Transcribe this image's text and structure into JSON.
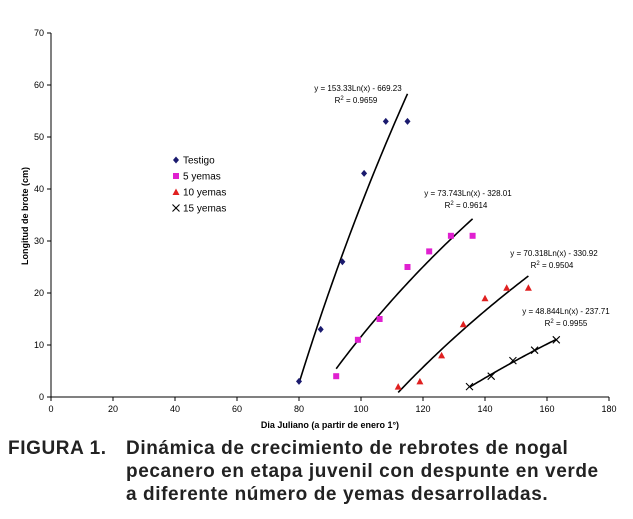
{
  "chart_data": {
    "type": "scatter",
    "title": "",
    "xlabel": "Dia Juliano (a partir de enero 1°)",
    "ylabel": "Longitud de brote (cm)",
    "xlim": [
      0,
      180
    ],
    "ylim": [
      0,
      70
    ],
    "xticks": [
      "0",
      "20",
      "40",
      "60",
      "80",
      "100",
      "120",
      "140",
      "160",
      "180"
    ],
    "yticks": [
      "0",
      "10",
      "20",
      "30",
      "40",
      "50",
      "60",
      "70"
    ],
    "legend_position": "center-left",
    "series": [
      {
        "name": "Testigo",
        "marker": "diamond",
        "color": "#1a1a6e",
        "x": [
          80,
          87,
          94,
          101,
          108,
          115
        ],
        "y": [
          3,
          13,
          26,
          43,
          53,
          53
        ],
        "trend": {
          "a": 153.33,
          "b": 669.23,
          "x_range": [
            80,
            115
          ],
          "equation": "y = 153.33Ln(x) - 669.23",
          "r2_label": "R",
          "r2_value": " = 0.9659"
        }
      },
      {
        "name": "5 yemas",
        "marker": "square",
        "color": "#e020d0",
        "x": [
          92,
          99,
          106,
          115,
          122,
          129,
          136
        ],
        "y": [
          4,
          11,
          15,
          25,
          28,
          31,
          31
        ],
        "trend": {
          "a": 73.743,
          "b": 328.01,
          "x_range": [
            92,
            136
          ],
          "equation": "y = 73.743Ln(x) - 328.01",
          "r2_label": "R",
          "r2_value": " = 0.9614"
        }
      },
      {
        "name": "10 yemas",
        "marker": "triangle",
        "color": "#e02020",
        "x": [
          112,
          119,
          126,
          133,
          140,
          147,
          154
        ],
        "y": [
          2,
          3,
          8,
          14,
          19,
          21,
          21
        ],
        "trend": {
          "a": 70.318,
          "b": 330.92,
          "x_range": [
            112,
            154
          ],
          "equation": "y = 70.318Ln(x) - 330.92",
          "r2_label": "R",
          "r2_value": " = 0.9504"
        }
      },
      {
        "name": "15 yemas",
        "marker": "x",
        "color": "#000000",
        "x": [
          135,
          142,
          149,
          156,
          163
        ],
        "y": [
          2,
          4,
          7,
          9,
          11
        ],
        "trend": {
          "a": 48.844,
          "b": 237.71,
          "x_range": [
            135,
            163
          ],
          "equation": "y = 48.844Ln(x) - 237.71",
          "r2_label": "R",
          "r2_value": " = 0.9955"
        }
      }
    ]
  },
  "caption": {
    "label": "FIGURA 1.",
    "line1": "Dinámica de crecimiento de rebrotes de nogal",
    "line2": "pecanero en etapa juvenil con despunte en verde",
    "line3": "a diferente número de yemas desarrolladas."
  }
}
